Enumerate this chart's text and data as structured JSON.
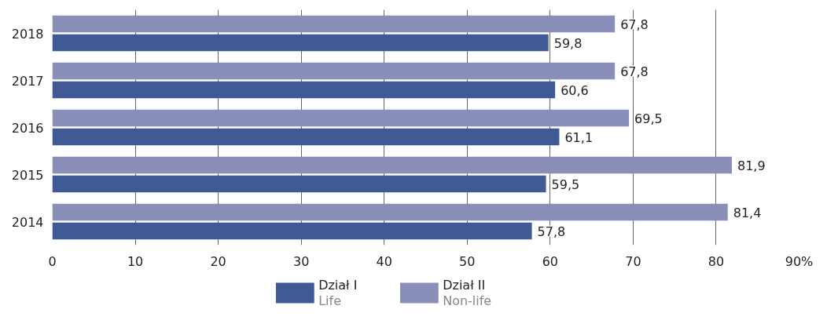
{
  "chart_data": {
    "type": "bar",
    "orientation": "horizontal",
    "categories": [
      "2018",
      "2017",
      "2016",
      "2015",
      "2014"
    ],
    "series": [
      {
        "name": "Dział I\nLife",
        "color": "#3f5a94",
        "values": [
          59.8,
          60.6,
          61.1,
          59.5,
          57.8
        ],
        "value_labels": [
          "59,8",
          "60,6",
          "61,1",
          "59,5",
          "57,8"
        ]
      },
      {
        "name": "Dział II\nNon-life",
        "color": "#8a8fb9",
        "values": [
          67.8,
          67.8,
          69.5,
          81.9,
          81.4
        ],
        "value_labels": [
          "67,8",
          "67,8",
          "69,5",
          "81,9",
          "81,4"
        ]
      }
    ],
    "xlim": [
      0,
      90
    ],
    "xticks": [
      0,
      10,
      20,
      30,
      40,
      50,
      60,
      70,
      80,
      {
        "value": 90,
        "label": "90%"
      }
    ],
    "grid": "x",
    "legend": "bottom"
  }
}
